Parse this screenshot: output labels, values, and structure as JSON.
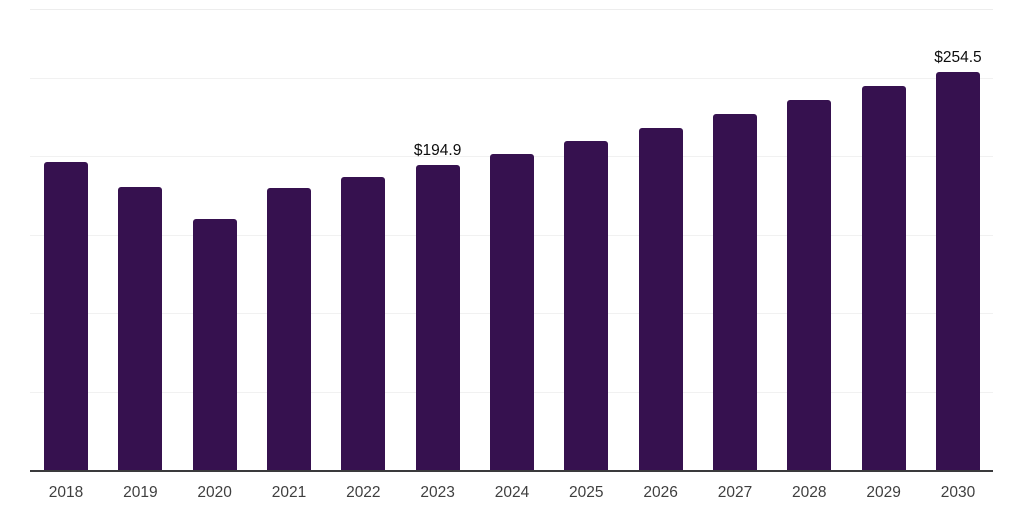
{
  "page": {
    "background_color": "#ffffff"
  },
  "chart_data": {
    "type": "bar",
    "title": "",
    "xlabel": "",
    "ylabel": "",
    "value_prefix": "$",
    "categories": [
      "2018",
      "2019",
      "2020",
      "2021",
      "2022",
      "2023",
      "2024",
      "2025",
      "2026",
      "2027",
      "2028",
      "2029",
      "2030"
    ],
    "values": [
      197.0,
      180.9,
      160.8,
      180.2,
      187.6,
      194.9,
      202.3,
      210.2,
      218.4,
      227.7,
      236.5,
      245.5,
      254.5
    ],
    "data_labels": [
      "",
      "",
      "",
      "",
      "",
      "$194.9",
      "",
      "",
      "",
      "",
      "",
      "",
      "$254.5"
    ],
    "ylim": [
      0,
      294
    ],
    "gridline_values": [
      50,
      100,
      150,
      200,
      250
    ],
    "grid": "horizontal",
    "legend": "none",
    "colors": {
      "bar": "#36114F",
      "axis_line": "#3a3a3c",
      "gridline": "#f1f1f1",
      "plot_top_border": "#ededed",
      "tick_label": "#3f3f3f",
      "data_label": "#0d0d0d"
    }
  }
}
